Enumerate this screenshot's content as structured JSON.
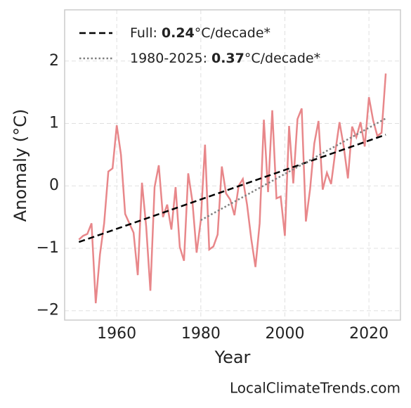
{
  "chart_data": {
    "type": "line",
    "x_label": "Year",
    "y_label": "Anomaly (°C)",
    "x": [
      1951,
      1952,
      1953,
      1954,
      1955,
      1956,
      1957,
      1958,
      1959,
      1960,
      1961,
      1962,
      1963,
      1964,
      1965,
      1966,
      1967,
      1968,
      1969,
      1970,
      1971,
      1972,
      1973,
      1974,
      1975,
      1976,
      1977,
      1978,
      1979,
      1980,
      1981,
      1982,
      1983,
      1984,
      1985,
      1986,
      1987,
      1988,
      1989,
      1990,
      1991,
      1992,
      1993,
      1994,
      1995,
      1996,
      1997,
      1998,
      1999,
      2000,
      2001,
      2002,
      2003,
      2004,
      2005,
      2006,
      2007,
      2008,
      2009,
      2010,
      2011,
      2012,
      2013,
      2014,
      2015,
      2016,
      2017,
      2018,
      2019,
      2020,
      2021,
      2022,
      2023,
      2024
    ],
    "values": [
      -0.86,
      -0.8,
      -0.77,
      -0.6,
      -1.88,
      -1.1,
      -0.6,
      0.23,
      0.28,
      0.97,
      0.5,
      -0.45,
      -0.6,
      -0.75,
      -1.43,
      0.05,
      -0.65,
      -1.68,
      -0.02,
      0.33,
      -0.5,
      -0.3,
      -0.7,
      -0.02,
      -0.98,
      -1.2,
      0.2,
      -0.25,
      -1.07,
      -0.55,
      0.66,
      -1.02,
      -0.97,
      -0.78,
      0.31,
      -0.12,
      -0.22,
      -0.47,
      0.0,
      0.11,
      -0.3,
      -0.85,
      -1.3,
      -0.6,
      1.06,
      -0.1,
      1.21,
      -0.2,
      -0.17,
      -0.8,
      0.96,
      0.04,
      1.07,
      1.24,
      -0.57,
      -0.05,
      0.68,
      1.04,
      -0.06,
      0.21,
      0.03,
      0.55,
      1.02,
      0.63,
      0.12,
      0.95,
      0.78,
      1.02,
      0.63,
      1.42,
      1.05,
      0.8,
      0.85,
      1.8
    ],
    "color": "#e8878a",
    "trends": [
      {
        "name": "Full:",
        "rate": 0.24,
        "unit": "°C/decade*",
        "x": [
          1951,
          2024
        ],
        "values": [
          -0.9,
          0.82
        ],
        "color": "#000000",
        "dash": "dashed"
      },
      {
        "name": "1980-2025:",
        "rate": 0.37,
        "unit": "°C/decade*",
        "x": [
          1980,
          2024
        ],
        "values": [
          -0.55,
          1.08
        ],
        "color": "#808080",
        "dash": "dotted"
      }
    ],
    "xlim": [
      1947.6,
      2027.5
    ],
    "ylim": [
      -2.15,
      2.82
    ],
    "xticks": [
      1960,
      1980,
      2000,
      2020
    ],
    "yticks": [
      {
        "value": -2,
        "label": "−2"
      },
      {
        "value": -1,
        "label": "−1"
      },
      0,
      1,
      2
    ],
    "grid": true,
    "legend": "upper left",
    "watermark": "LocalClimateTrends.com"
  }
}
